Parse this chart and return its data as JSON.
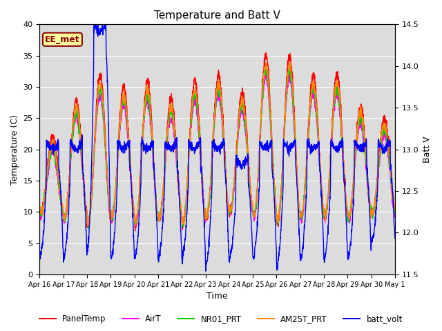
{
  "title": "Temperature and Batt V",
  "xlabel": "Time",
  "ylabel_left": "Temperature (C)",
  "ylabel_right": "Batt V",
  "ylim_left": [
    0,
    40
  ],
  "ylim_right": [
    11.5,
    14.5
  ],
  "annotation": "EE_met",
  "annotation_color": "#8B0000",
  "annotation_bg": "#FFFFA0",
  "background_color": "#DCDCDC",
  "x_tick_labels": [
    "Apr 16",
    "Apr 17",
    "Apr 18",
    "Apr 19",
    "Apr 20",
    "Apr 21",
    "Apr 22",
    "Apr 23",
    "Apr 24",
    "Apr 25",
    "Apr 26",
    "Apr 27",
    "Apr 28",
    "Apr 29",
    "Apr 30",
    "May 1"
  ],
  "line_colors": {
    "PanelTemp": "#FF0000",
    "AirT": "#FF00FF",
    "NR01_PRT": "#00CC00",
    "AM25T_PRT": "#FF8800",
    "batt_volt": "#0000FF"
  },
  "line_width": 1.0,
  "n_points_per_day": 144,
  "n_days": 15,
  "day_peaks": [
    22,
    28,
    32,
    30,
    31,
    28,
    31,
    32,
    29,
    35,
    35,
    32,
    32,
    27,
    25
  ],
  "day_mins": [
    10,
    9,
    8,
    9,
    8,
    9,
    8,
    9,
    10,
    9,
    8,
    9,
    9,
    9,
    10
  ],
  "batt_peaks": [
    13.1,
    13.1,
    14.5,
    13.1,
    13.1,
    13.1,
    13.1,
    13.1,
    12.9,
    13.1,
    13.1,
    13.1,
    13.1,
    13.1,
    13.1
  ],
  "batt_mins": [
    11.7,
    11.7,
    11.8,
    11.7,
    11.7,
    11.7,
    11.7,
    11.6,
    11.7,
    11.7,
    11.6,
    11.7,
    11.7,
    11.7,
    11.9
  ]
}
